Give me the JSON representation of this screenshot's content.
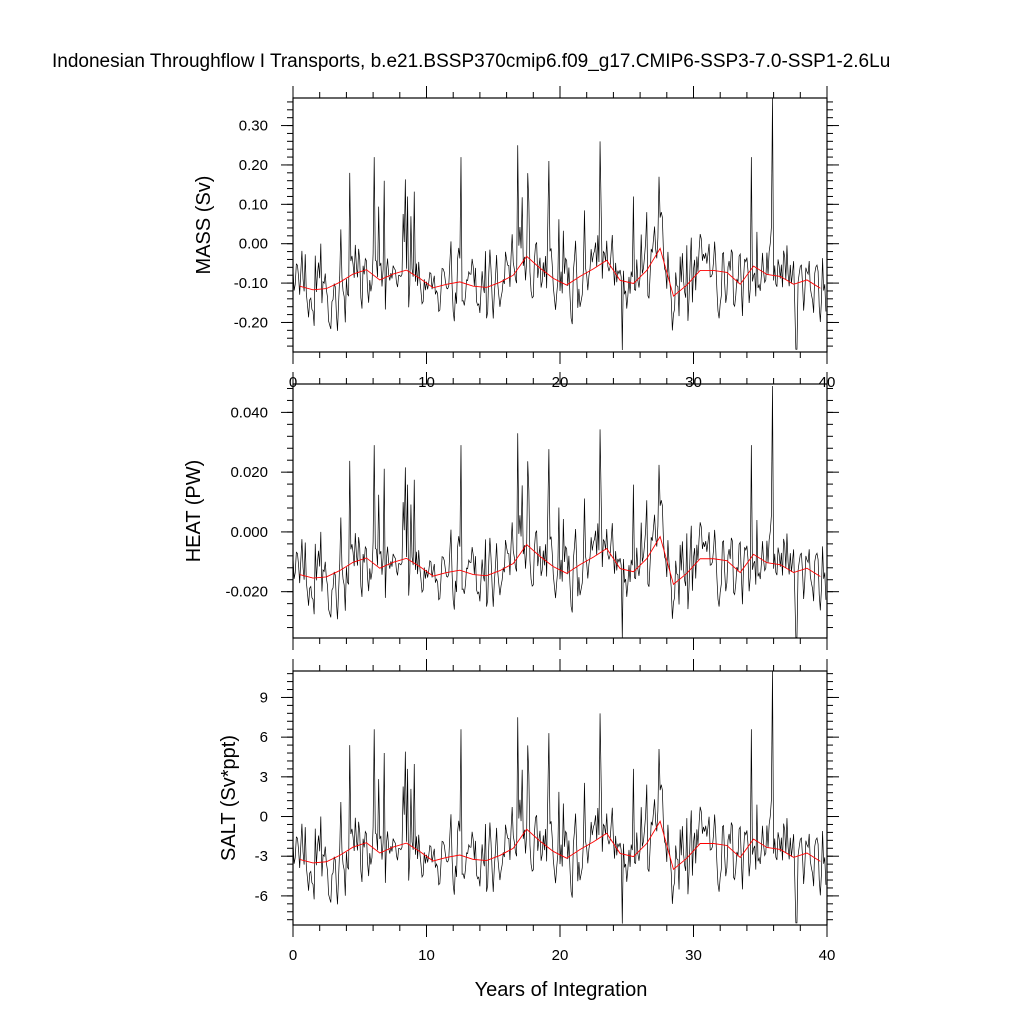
{
  "title": "Indonesian Throughflow I Transports, b.e21.BSSP370cmip6.f09_g17.CMIP6-SSP3-7.0-SSP1-2.6Lu",
  "xlabel": "Years of Integration",
  "colors": {
    "monthly": "#000000",
    "annual": "#ff0000"
  },
  "chart_data": [
    {
      "type": "line",
      "ylabel": "MASS (Sv)",
      "ylim": [
        -0.275,
        0.37
      ],
      "yticks": [
        0.3,
        0.2,
        0.1,
        0.0,
        -0.1,
        -0.2
      ],
      "ytick_labels": [
        "0.30",
        "0.20",
        "0.10",
        "0.00",
        "-0.10",
        "-0.20"
      ],
      "xlim": [
        0,
        40
      ],
      "xticks": [
        0,
        10,
        20,
        30,
        40
      ],
      "xtick_labels": [
        "0",
        "10",
        "20",
        "30",
        "40"
      ],
      "series": [
        {
          "role": "monthly",
          "x": [],
          "y": []
        },
        {
          "role": "annual-mean",
          "x": [],
          "y": []
        }
      ]
    },
    {
      "type": "line",
      "ylabel": "HEAT (PW)",
      "ylim": [
        -0.0355,
        0.0495
      ],
      "yticks": [
        0.04,
        0.02,
        0.0,
        -0.02
      ],
      "ytick_labels": [
        "0.040",
        "0.020",
        "0.000",
        "-0.020"
      ],
      "xlim": [
        0,
        40
      ],
      "xticks": [
        0,
        10,
        20,
        30,
        40
      ],
      "xtick_labels": [
        "",
        "",
        "",
        "",
        ""
      ],
      "series": [
        {
          "role": "monthly",
          "x": [],
          "y": []
        },
        {
          "role": "annual-mean",
          "x": [],
          "y": []
        }
      ]
    },
    {
      "type": "line",
      "ylabel": "SALT (Sv*ppt)",
      "ylim": [
        -8.2,
        11.0
      ],
      "yticks": [
        9,
        6,
        3,
        0,
        -3,
        -6
      ],
      "ytick_labels": [
        "9",
        "6",
        "3",
        "0",
        "-3",
        "-6"
      ],
      "xlim": [
        0,
        40
      ],
      "xticks": [
        0,
        10,
        20,
        30,
        40
      ],
      "xtick_labels": [
        "0",
        "10",
        "20",
        "30",
        "40"
      ],
      "series": [
        {
          "role": "monthly",
          "x": [],
          "y": []
        },
        {
          "role": "annual-mean",
          "x": [],
          "y": []
        }
      ]
    }
  ]
}
